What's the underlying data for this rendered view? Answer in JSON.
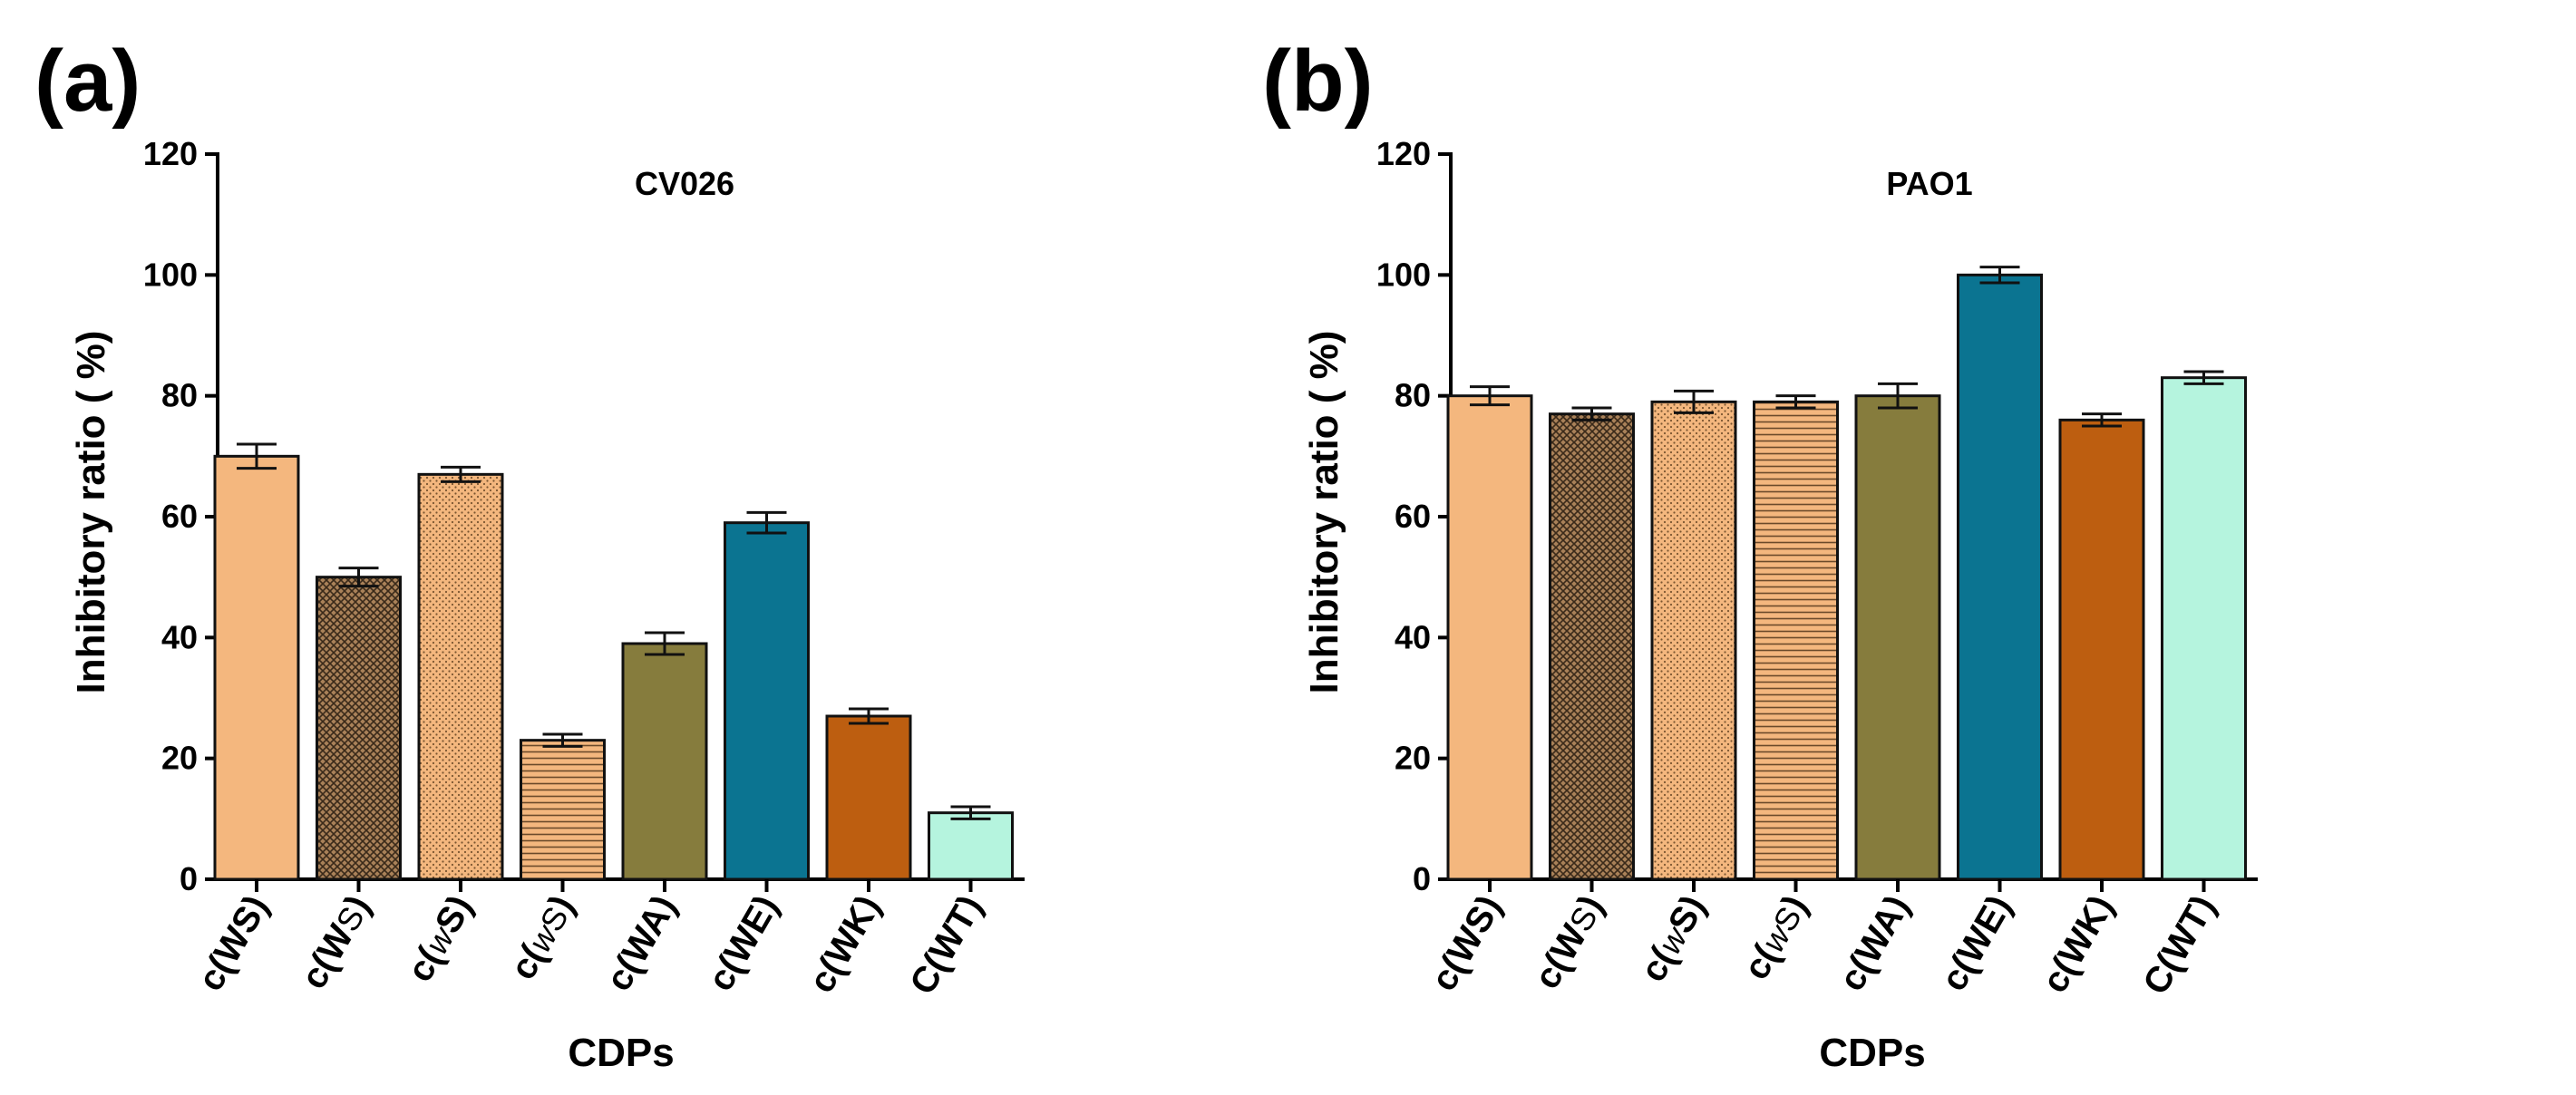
{
  "chart_data": [
    {
      "panel": "(a)",
      "type": "bar",
      "title": "CV026",
      "xlabel": "CDPs",
      "ylabel": "Inhibitory ratio ( %)",
      "ylim": [
        0,
        120
      ],
      "yticks": [
        0,
        20,
        40,
        60,
        80,
        100,
        120
      ],
      "grid": false,
      "categories": [
        "c(WS)",
        "c(WS)",
        "c(wS)",
        "c(wS)",
        "c(WA)",
        "c(WE)",
        "c(WK)",
        "C(WT)"
      ],
      "values": [
        70,
        50,
        67,
        23,
        39,
        59,
        27,
        11
      ],
      "errors": [
        2,
        1.5,
        1.2,
        1,
        1.8,
        1.7,
        1.2,
        1
      ]
    },
    {
      "panel": "(b)",
      "type": "bar",
      "title": "PAO1",
      "xlabel": "CDPs",
      "ylabel": "Inhibitory ratio ( %)",
      "ylim": [
        0,
        120
      ],
      "yticks": [
        0,
        20,
        40,
        60,
        80,
        100,
        120
      ],
      "grid": false,
      "categories": [
        "c(WS)",
        "c(WS)",
        "c(wS)",
        "c(wS)",
        "c(WA)",
        "c(WE)",
        "c(WK)",
        "C(WT)"
      ],
      "values": [
        80,
        77,
        79,
        79,
        80,
        100,
        76,
        83
      ],
      "errors": [
        1.5,
        1,
        1.8,
        1,
        2,
        1.3,
        1,
        1
      ]
    }
  ],
  "bar_styles": [
    {
      "fill": "#F4B77E",
      "pattern": "none"
    },
    {
      "fill": "#A98158",
      "pattern": "crosshatch"
    },
    {
      "fill": "#F4B77E",
      "pattern": "dots"
    },
    {
      "fill": "#F4B77E",
      "pattern": "hlines"
    },
    {
      "fill": "#867C3D",
      "pattern": "none"
    },
    {
      "fill": "#0B7491",
      "pattern": "none"
    },
    {
      "fill": "#BD5E10",
      "pattern": "none"
    },
    {
      "fill": "#B5F4DE",
      "pattern": "none"
    }
  ],
  "label_styles": [
    [
      "c(",
      "b:WS",
      ")"
    ],
    [
      "c(",
      "b:W",
      "n:S",
      ")"
    ],
    [
      "c(",
      "l:w",
      "b:S",
      ")"
    ],
    [
      "c(",
      "l:w",
      "n:S",
      ")"
    ],
    [
      "c(",
      "b:WA",
      ")"
    ],
    [
      "c(",
      "b:WE",
      ")"
    ],
    [
      "c(",
      "b:WK",
      ")"
    ],
    [
      "C(",
      "b:WT",
      ")"
    ]
  ]
}
